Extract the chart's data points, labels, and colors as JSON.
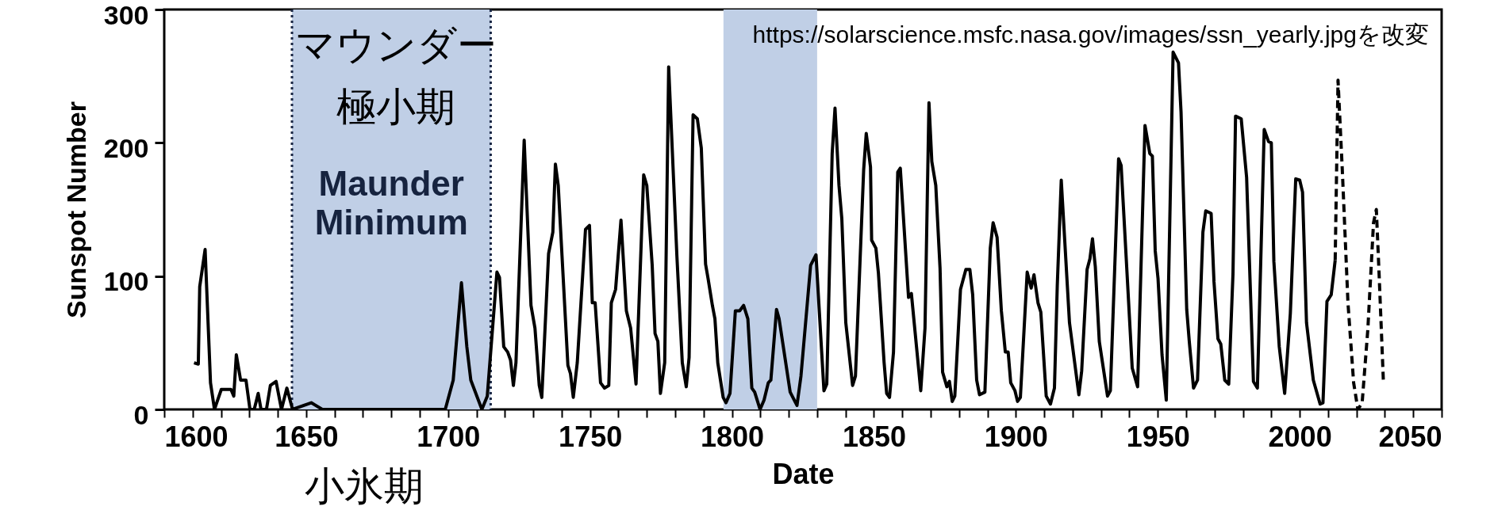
{
  "chart_data": {
    "type": "line",
    "xlabel": "Date",
    "ylabel": "Sunspot Number",
    "xlim": [
      1600,
      2050
    ],
    "xticks": [
      1600,
      {
        "value": 1610,
        "label": null
      },
      {
        "value": 1620,
        "label": null
      },
      {
        "value": 1630,
        "label": null
      },
      {
        "value": 1640,
        "label": null
      },
      1650,
      {
        "value": 1660,
        "label": null
      },
      {
        "value": 1670,
        "label": null
      },
      {
        "value": 1680,
        "label": null
      },
      {
        "value": 1690,
        "label": null
      },
      1700,
      {
        "value": 1710,
        "label": null
      },
      {
        "value": 1720,
        "label": null
      },
      {
        "value": 1730,
        "label": null
      },
      {
        "value": 1740,
        "label": null
      },
      1750,
      {
        "value": 1760,
        "label": null
      },
      {
        "value": 1770,
        "label": null
      },
      {
        "value": 1780,
        "label": null
      },
      {
        "value": 1790,
        "label": null
      },
      1800,
      {
        "value": 1810,
        "label": null
      },
      {
        "value": 1820,
        "label": null
      },
      {
        "value": 1830,
        "label": null
      },
      {
        "value": 1840,
        "label": null
      },
      1850,
      {
        "value": 1860,
        "label": null
      },
      {
        "value": 1870,
        "label": null
      },
      {
        "value": 1880,
        "label": null
      },
      {
        "value": 1890,
        "label": null
      },
      1900,
      {
        "value": 1910,
        "label": null
      },
      {
        "value": 1920,
        "label": null
      },
      {
        "value": 1930,
        "label": null
      },
      {
        "value": 1940,
        "label": null
      },
      1950,
      {
        "value": 1960,
        "label": null
      },
      {
        "value": 1970,
        "label": null
      },
      {
        "value": 1980,
        "label": null
      },
      {
        "value": 1990,
        "label": null
      },
      2000,
      {
        "value": 2010,
        "label": null
      },
      {
        "value": 2020,
        "label": null
      },
      {
        "value": 2030,
        "label": null
      },
      {
        "value": 2040,
        "label": null
      },
      2050
    ],
    "ylim": [
      0,
      300
    ],
    "yticks": [
      0,
      100,
      200,
      300
    ],
    "grid": false,
    "marker": "none",
    "bands": [
      {
        "axis": "x",
        "from": 1645,
        "to": 1715,
        "label": "Maunder\nMinimum",
        "color": "#c0cfe6"
      },
      {
        "axis": "x",
        "from": 1797,
        "to": 1830,
        "color": "#c0cfe6"
      }
    ],
    "ref_lines": [
      {
        "axis": "x",
        "value": 1645,
        "color": "#1a2744",
        "line_style": "dotted"
      },
      {
        "axis": "x",
        "value": 1715,
        "color": "#1a2744",
        "line_style": "dotted"
      }
    ],
    "annotations": [
      "マウンダー",
      "極小期",
      "小氷期",
      "https://solarscience.msfc.nasa.gov/images/ssn_yearly.jpgを改変"
    ],
    "series": [
      {
        "color": "#000000",
        "line_style": "solid",
        "x": [
          1610.5,
          1612,
          1612.5,
          1614.4,
          1616.3,
          1617.7,
          1620.1,
          1623.5,
          1624.5,
          1625.4,
          1626.9,
          1628.8,
          1630.2,
          1631.7,
          1633.1,
          1634.1,
          1636,
          1637.4,
          1639.4,
          1641.3,
          1643.2,
          1645.2,
          1651.8,
          1655.7,
          1699,
          1701.8,
          1704.7,
          1706.6,
          1708,
          1711.9,
          1713.8,
          1717.2,
          1718.1,
          1719.6,
          1721,
          1722,
          1723,
          1723.9,
          1726.8,
          1729.2,
          1730.6,
          1732.1,
          1733,
          1735.4,
          1736.9,
          1737.8,
          1738.8,
          1742.2,
          1743.1,
          1744.1,
          1745.5,
          1748.4,
          1749.8,
          1750.8,
          1751.8,
          1753.7,
          1755.1,
          1756.6,
          1757.5,
          1759,
          1760.9,
          1762.8,
          1764.3,
          1766.2,
          1768.1,
          1768.9,
          1770,
          1771.9,
          1772.9,
          1773.9,
          1774.8,
          1776.3,
          1777.7,
          1780.6,
          1782.5,
          1783.9,
          1784.9,
          1786.3,
          1787.8,
          1789.2,
          1790.7,
          1791.6,
          1793.1,
          1794,
          1795,
          1796.9,
          1797.9,
          1799.3,
          1801.2,
          1802.7,
          1804.1,
          1805.6,
          1807,
          1808,
          1809.9,
          1811.3,
          1812.8,
          1813.7,
          1815.7,
          1816.6,
          1820.5,
          1822.9,
          1824.3,
          1827.7,
          1829.6,
          1832.4,
          1833.4,
          1835.3,
          1836.3,
          1837.7,
          1838.7,
          1840.1,
          1842.5,
          1843.5,
          1846.4,
          1847.3,
          1848.8,
          1849.2,
          1850.7,
          1851.6,
          1853.6,
          1854.5,
          1855.5,
          1856.9,
          1858.4,
          1859.3,
          1862.2,
          1863.2,
          1866.5,
          1868,
          1869.4,
          1870.4,
          1871.8,
          1873.3,
          1874.2,
          1875.7,
          1876.6,
          1877.6,
          1878.5,
          1880.5,
          1882.4,
          1883.8,
          1884.8,
          1886.2,
          1887.2,
          1889.1,
          1891,
          1892,
          1893.4,
          1894.9,
          1896.3,
          1897.3,
          1898.2,
          1899.7,
          1900.6,
          1901.6,
          1904,
          1905.4,
          1906.4,
          1907.8,
          1908.8,
          1910.7,
          1912.2,
          1913.6,
          1914.6,
          1916,
          1918.9,
          1922.2,
          1923.2,
          1925.1,
          1926.1,
          1927,
          1928,
          1929.4,
          1932.3,
          1933.3,
          1936.2,
          1937.1,
          1941,
          1942.9,
          1945.5,
          1947.2,
          1948.1,
          1949.1,
          1950.1,
          1951.5,
          1953,
          1955.4,
          1957.3,
          1958.2,
          1960.2,
          1961.1,
          1962.6,
          1964,
          1965.9,
          1966.9,
          1968.8,
          1969.8,
          1971.2,
          1972.2,
          1973.6,
          1975,
          1976.5,
          1977.4,
          1979.4,
          1981.3,
          1983.7,
          1985.1,
          1987.5,
          1989,
          1990,
          1990.9,
          1992.8,
          1994.7,
          1996.7,
          1998.6,
          2000,
          2001,
          2002.4,
          2004.8,
          2007.2,
          2008.2,
          2009.6,
          2011.1,
          2012.5
        ],
        "values": [
          35,
          34,
          92,
          120,
          20,
          0,
          15,
          15,
          10,
          41,
          22,
          22,
          0,
          0,
          12,
          0,
          0,
          18,
          21,
          0,
          16,
          0,
          5,
          0,
          0,
          22,
          95,
          47,
          22,
          0,
          10,
          103,
          99,
          47,
          43,
          37,
          18,
          35,
          202,
          78,
          61,
          18,
          9,
          117,
          133,
          184,
          168,
          33,
          27,
          9,
          35,
          135,
          138,
          80,
          80,
          20,
          16,
          18,
          80,
          90,
          142,
          74,
          61,
          19,
          129,
          176,
          168,
          108,
          57,
          51,
          12,
          35,
          257,
          115,
          35,
          17,
          39,
          221,
          218,
          196,
          109,
          98,
          78,
          68,
          35,
          9,
          5,
          12,
          74,
          74,
          78,
          68,
          16,
          13,
          0,
          7,
          20,
          22,
          75,
          68,
          13,
          3,
          25,
          108,
          116,
          14,
          19,
          192,
          226,
          168,
          143,
          65,
          18,
          25,
          180,
          207,
          182,
          127,
          121,
          102,
          35,
          12,
          9,
          43,
          178,
          181,
          84,
          87,
          14,
          61,
          230,
          186,
          168,
          106,
          28,
          17,
          21,
          6,
          10,
          90,
          105,
          105,
          86,
          22,
          11,
          13,
          121,
          140,
          129,
          74,
          43,
          43,
          20,
          14,
          6,
          9,
          103,
          91,
          101,
          80,
          73,
          10,
          4,
          16,
          93,
          172,
          65,
          11,
          29,
          105,
          113,
          128,
          107,
          51,
          10,
          14,
          188,
          183,
          31,
          17,
          213,
          192,
          190,
          119,
          98,
          41,
          7,
          268,
          260,
          223,
          75,
          51,
          16,
          22,
          133,
          149,
          147,
          96,
          53,
          49,
          22,
          19,
          102,
          220,
          218,
          174,
          21,
          16,
          210,
          201,
          200,
          111,
          47,
          12,
          72,
          173,
          172,
          163,
          65,
          22,
          4,
          5,
          81,
          86,
          112
        ]
      },
      {
        "color": "#000000",
        "line_style": "dashed",
        "x": [
          2012.5,
          2013.5,
          2015,
          2017,
          2019,
          2020.5,
          2022,
          2024,
          2026,
          2027,
          2028,
          2029.5
        ],
        "values": [
          112,
          247,
          180,
          80,
          20,
          0,
          5,
          60,
          140,
          150,
          100,
          20
        ]
      }
    ]
  }
}
